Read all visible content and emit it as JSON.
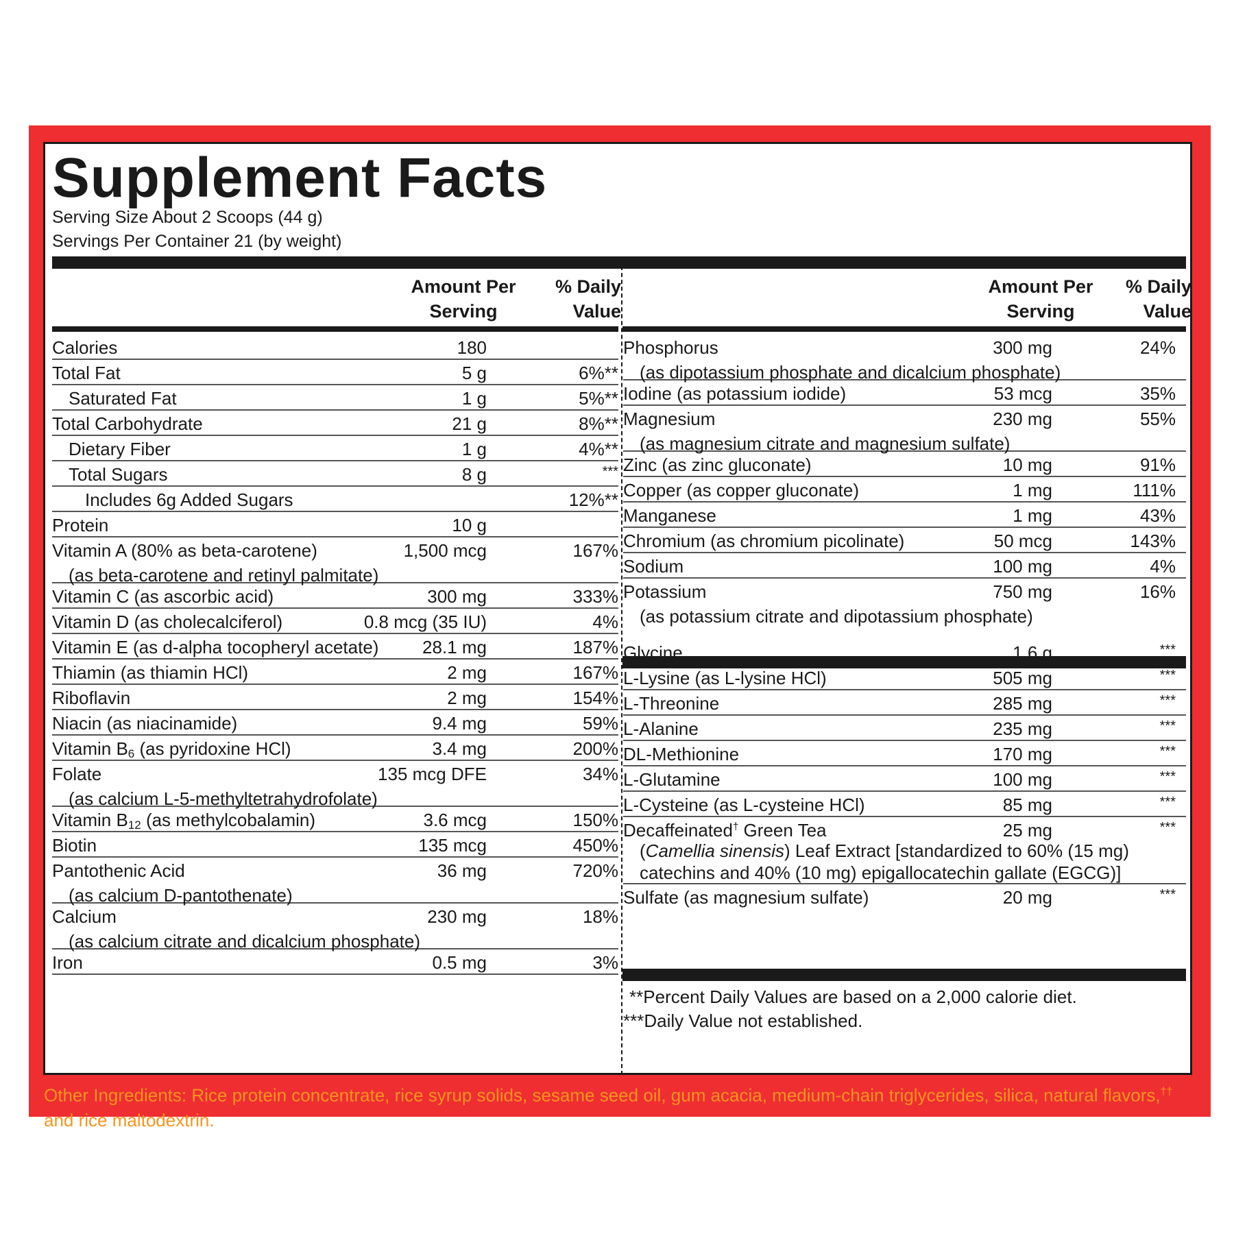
{
  "title": "Supplement Facts",
  "serving_size": "Serving Size About 2 Scoops (44 g)",
  "servings_per_container": "Servings Per Container 21 (by weight)",
  "headers": {
    "amount_line1": "Amount Per",
    "amount_line2": "Serving",
    "dv_line1": "% Daily",
    "dv_line2": "Value"
  },
  "left_rows": [
    {
      "name": "Calories",
      "amount": "180",
      "dv": "",
      "indent": 0
    },
    {
      "name": "Total Fat",
      "amount": "5 g",
      "dv": "6%**",
      "indent": 0
    },
    {
      "name": "Saturated Fat",
      "amount": "1 g",
      "dv": "5%**",
      "indent": 1
    },
    {
      "name": "Total Carbohydrate",
      "amount": "21 g",
      "dv": "8%**",
      "indent": 0
    },
    {
      "name": "Dietary Fiber",
      "amount": "1 g",
      "dv": "4%**",
      "indent": 1
    },
    {
      "name": "Total Sugars",
      "amount": "8 g",
      "dv": "***",
      "indent": 1
    },
    {
      "name": "Includes 6g Added Sugars",
      "amount": "",
      "dv": "12%**",
      "indent": 2
    },
    {
      "name": "Protein",
      "amount": "10 g",
      "dv": "",
      "indent": 0
    },
    {
      "name": "Vitamin A (80% as beta-carotene)",
      "sub": "(as beta-carotene and retinyl palmitate)",
      "amount": "1,500 mcg",
      "dv": "167%",
      "indent": 0
    },
    {
      "name": "Vitamin C (as ascorbic acid)",
      "amount": "300 mg",
      "dv": "333%",
      "indent": 0
    },
    {
      "name": "Vitamin D (as cholecalciferol)",
      "amount": "0.8 mcg (35 IU)",
      "dv": "4%",
      "indent": 0
    },
    {
      "name": "Vitamin E (as d-alpha tocopheryl acetate)",
      "amount": "28.1 mg",
      "dv": "187%",
      "indent": 0
    },
    {
      "name": "Thiamin (as thiamin HCl)",
      "amount": "2 mg",
      "dv": "167%",
      "indent": 0
    },
    {
      "name": "Riboflavin",
      "amount": "2 mg",
      "dv": "154%",
      "indent": 0
    },
    {
      "name": "Niacin (as niacinamide)",
      "amount": "9.4 mg",
      "dv": "59%",
      "indent": 0
    },
    {
      "name": "Vitamin B",
      "subscript": "6",
      "name_tail": " (as pyridoxine HCl)",
      "amount": "3.4 mg",
      "dv": "200%",
      "indent": 0
    },
    {
      "name": "Folate",
      "sub": "(as calcium L-5-methyltetrahydrofolate)",
      "amount": "135 mcg DFE",
      "dv": "34%",
      "indent": 0
    },
    {
      "name": "Vitamin B",
      "subscript": "12",
      "name_tail": " (as methylcobalamin)",
      "amount": "3.6 mcg",
      "dv": "150%",
      "indent": 0
    },
    {
      "name": "Biotin",
      "amount": "135 mcg",
      "dv": "450%",
      "indent": 0
    },
    {
      "name": "Pantothenic Acid",
      "sub": "(as calcium D-pantothenate)",
      "amount": "36 mg",
      "dv": "720%",
      "indent": 0
    },
    {
      "name": "Calcium",
      "sub": "(as calcium citrate and dicalcium phosphate)",
      "amount": "230 mg",
      "dv": "18%",
      "indent": 0
    },
    {
      "name": "Iron",
      "amount": "0.5 mg",
      "dv": "3%",
      "indent": 0
    }
  ],
  "right_rows_minerals": [
    {
      "name": "Phosphorus",
      "sub": "(as dipotassium phosphate and dicalcium phosphate)",
      "amount": "300 mg",
      "dv": "24%"
    },
    {
      "name": "Iodine (as potassium iodide)",
      "amount": "53 mcg",
      "dv": "35%"
    },
    {
      "name": "Magnesium",
      "sub": "(as magnesium citrate and magnesium sulfate)",
      "amount": "230 mg",
      "dv": "55%"
    },
    {
      "name": "Zinc (as zinc gluconate)",
      "amount": "10 mg",
      "dv": "91%"
    },
    {
      "name": "Copper (as copper gluconate)",
      "amount": "1 mg",
      "dv": "111%"
    },
    {
      "name": "Manganese",
      "amount": "1 mg",
      "dv": "43%"
    },
    {
      "name": "Chromium (as chromium picolinate)",
      "amount": "50 mcg",
      "dv": "143%"
    },
    {
      "name": "Sodium",
      "amount": "100 mg",
      "dv": "4%"
    },
    {
      "name": "Potassium",
      "sub": "(as potassium citrate and dipotassium phosphate)",
      "amount": "750 mg",
      "dv": "16%"
    }
  ],
  "right_rows_other": [
    {
      "name": "Glycine",
      "amount": "1.6 g",
      "dv": "***"
    },
    {
      "name": "L-Lysine (as L-lysine HCl)",
      "amount": "505 mg",
      "dv": "***"
    },
    {
      "name": "L-Threonine",
      "amount": "285 mg",
      "dv": "***"
    },
    {
      "name": "L-Alanine",
      "amount": "235 mg",
      "dv": "***"
    },
    {
      "name": "DL-Methionine",
      "amount": "170 mg",
      "dv": "***"
    },
    {
      "name": "L-Glutamine",
      "amount": "100 mg",
      "dv": "***"
    },
    {
      "name": "L-Cysteine (as L-cysteine HCl)",
      "amount": "85 mg",
      "dv": "***"
    },
    {
      "name": "Decaffeinated",
      "dagger": "†",
      "name_tail": " Green Tea",
      "sub_italic": "Camellia sinensis",
      "sub_after_italic": ") Leaf Extract [standardized to 60% (15 mg)",
      "sub_open": "(",
      "sub2": "catechins and 40% (10 mg) epigallocatechin gallate (EGCG)]",
      "amount": "25 mg",
      "dv": "***"
    },
    {
      "name": "Sulfate (as magnesium sulfate)",
      "amount": "20 mg",
      "dv": "***"
    }
  ],
  "footnotes": {
    "percent_dv": "**Percent Daily Values are based on a 2,000 calorie diet.",
    "not_established": "***Daily Value not established."
  },
  "other_ingredients": {
    "text_before": "Other Ingredients: Rice protein concentrate, rice syrup solids, sesame seed oil, gum acacia, medium-chain triglycerides, silica, natural flavors,",
    "superscript": "††",
    "text_after": " and rice maltodextrin."
  },
  "colors": {
    "frame_red": "#ee2e31",
    "ingredients_orange": "#f7941d",
    "text_black": "#1a1a1a"
  }
}
